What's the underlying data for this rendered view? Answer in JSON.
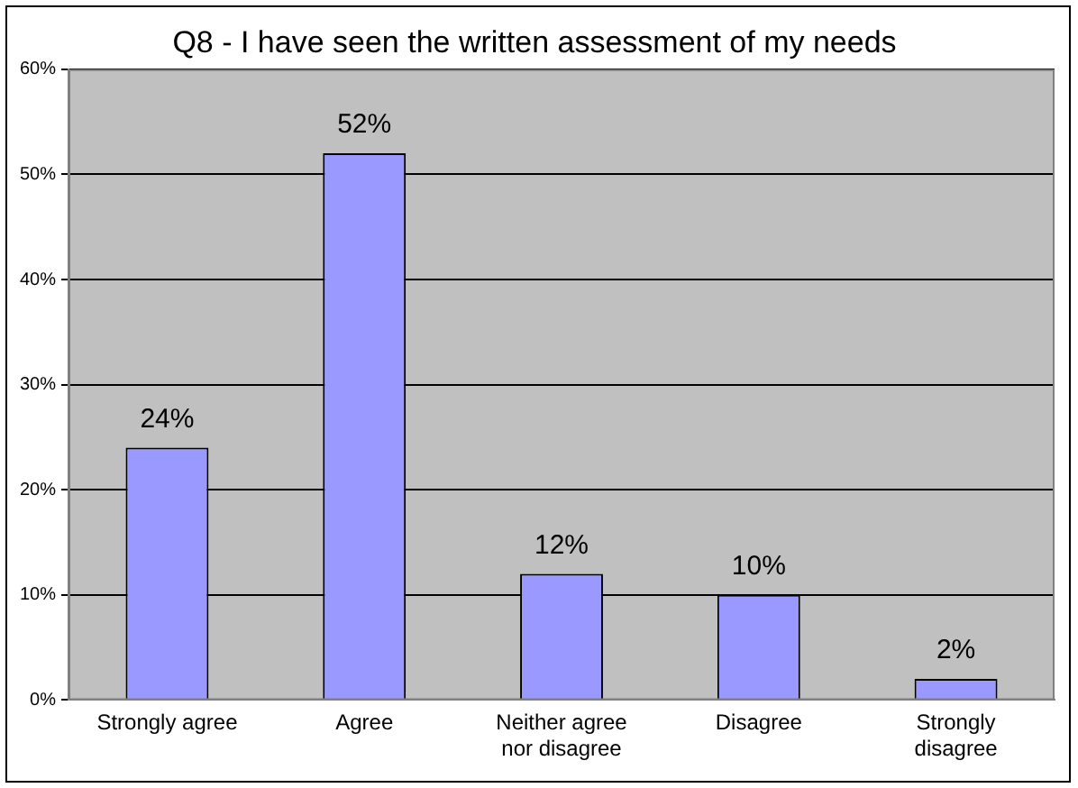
{
  "chart_data": {
    "type": "bar",
    "title": "Q8 - I have seen the written assessment of my needs",
    "categories": [
      "Strongly agree",
      "Agree",
      "Neither agree nor disagree",
      "Disagree",
      "Strongly disagree"
    ],
    "values": [
      24,
      52,
      12,
      10,
      2
    ],
    "value_labels": [
      "24%",
      "52%",
      "12%",
      "10%",
      "2%"
    ],
    "color": "#9999ff",
    "ylim": [
      0,
      60
    ],
    "yticks": [
      {
        "value": 0,
        "label": "0%"
      },
      {
        "value": 10,
        "label": "10%"
      },
      {
        "value": 20,
        "label": "20%"
      },
      {
        "value": 30,
        "label": "30%"
      },
      {
        "value": 40,
        "label": "40%"
      },
      {
        "value": 50,
        "label": "50%"
      },
      {
        "value": 60,
        "label": "60%"
      }
    ],
    "grid": "y",
    "legend": false
  }
}
